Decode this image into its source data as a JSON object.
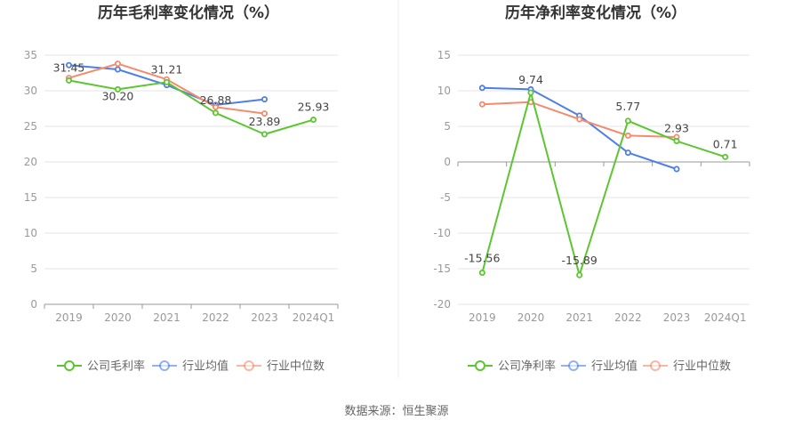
{
  "source_text": "数据来源：恒生聚源",
  "colors": {
    "company": "#5cc630",
    "industry_avg": "#4e7ee8",
    "industry_median": "#f58a6c",
    "grid": "#e6e6e6",
    "axis": "#999999",
    "divider": "#eeeeee"
  },
  "chart_data": [
    {
      "type": "line",
      "title": "历年毛利率变化情况（%）",
      "categories": [
        "2019",
        "2020",
        "2021",
        "2022",
        "2023",
        "2024Q1"
      ],
      "ylim": [
        0,
        35
      ],
      "yticks": [
        0,
        5,
        10,
        15,
        20,
        25,
        30,
        35
      ],
      "grid": true,
      "legend_position": "bottom",
      "series": [
        {
          "name": "公司毛利率",
          "key": "company",
          "values": [
            31.45,
            30.2,
            31.21,
            26.88,
            23.89,
            25.93
          ],
          "labels": [
            "31.45",
            "30.20",
            "31.21",
            "26.88",
            "23.89",
            "25.93"
          ]
        },
        {
          "name": "行业均值",
          "key": "industry_avg",
          "values": [
            33.6,
            33.0,
            30.8,
            28.0,
            28.8,
            null
          ]
        },
        {
          "name": "行业中位数",
          "key": "industry_median",
          "values": [
            31.8,
            33.8,
            31.6,
            27.7,
            26.8,
            null
          ]
        }
      ]
    },
    {
      "type": "line",
      "title": "历年净利率变化情况（%）",
      "categories": [
        "2019",
        "2020",
        "2021",
        "2022",
        "2023",
        "2024Q1"
      ],
      "ylim": [
        -20,
        15
      ],
      "yticks": [
        -20,
        -15,
        -10,
        -5,
        0,
        5,
        10,
        15
      ],
      "grid": true,
      "legend_position": "bottom",
      "series": [
        {
          "name": "公司净利率",
          "key": "company",
          "values": [
            -15.56,
            9.74,
            -15.89,
            5.77,
            2.93,
            0.71
          ],
          "labels": [
            "-15.56",
            "9.74",
            "-15.89",
            "5.77",
            "2.93",
            "0.71"
          ]
        },
        {
          "name": "行业均值",
          "key": "industry_avg",
          "values": [
            10.4,
            10.2,
            6.5,
            1.3,
            -1.0,
            null
          ]
        },
        {
          "name": "行业中位数",
          "key": "industry_median",
          "values": [
            8.1,
            8.4,
            6.0,
            3.7,
            3.5,
            null
          ]
        }
      ]
    }
  ]
}
